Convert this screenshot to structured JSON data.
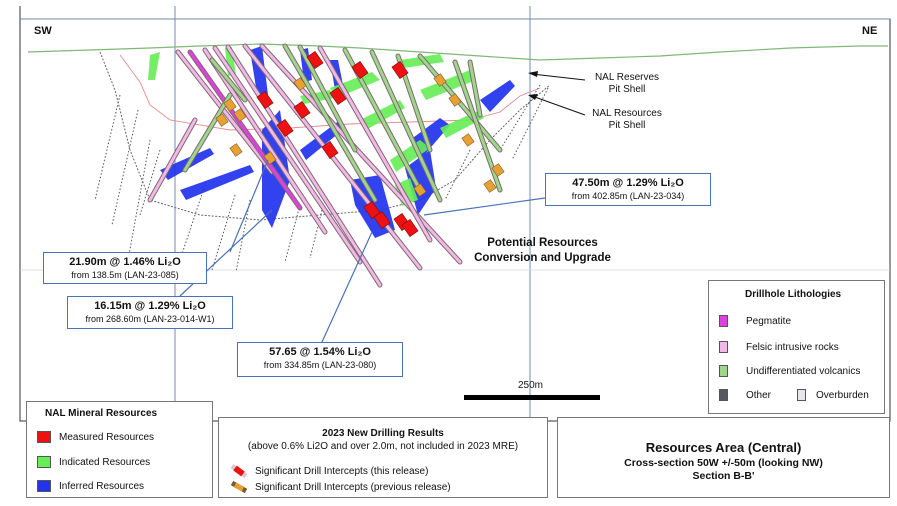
{
  "section": {
    "left_direction": "SW",
    "right_direction": "NE",
    "pit_labels": [
      {
        "line1": "NAL Reserves",
        "line2": "Pit Shell"
      },
      {
        "line1": "NAL Resources",
        "line2": "Pit Shell"
      }
    ],
    "potential": {
      "line1": "Potential Resources",
      "line2": "Conversion and Upgrade"
    },
    "scale_label": "250m"
  },
  "callouts": [
    {
      "main": "47.50m @ 1.29% Li₂O",
      "sub": "from 402.85m  (LAN-23-034)"
    },
    {
      "main": "21.90m @ 1.46% Li₂O",
      "sub": "from 138.5m  (LAN-23-085)"
    },
    {
      "main": "16.15m @ 1.29% Li₂O",
      "sub": "from 268.60m  (LAN-23-014-W1)"
    },
    {
      "main": "57.65 @ 1.54% Li₂O",
      "sub": "from 334.85m  (LAN-23-080)"
    }
  ],
  "lithology_legend": {
    "title": "Drillhole Lithologies",
    "items": [
      {
        "label": "Pegmatite",
        "color": "#e040e0"
      },
      {
        "label": "Felsic intrusive rocks",
        "color": "#f2b8e6"
      },
      {
        "label": "Undifferentiated volcanics",
        "color": "#9fd68a"
      }
    ],
    "other_label": "Other",
    "other_color": "#55585e",
    "overburden_label": "Overburden",
    "overburden_color": "#e6e6ec"
  },
  "resources_legend": {
    "title": "NAL Mineral Resources",
    "items": [
      {
        "label": "Measured Resources",
        "color": "#ee1111"
      },
      {
        "label": "Indicated Resources",
        "color": "#66ee55"
      },
      {
        "label": "Inferred Resources",
        "color": "#2233ee"
      }
    ]
  },
  "drilling_legend": {
    "title": "2023 New Drilling Results",
    "subtitle": "(above 0.6% Li2O and over 2.0m, not included in 2023 MRE)",
    "items": [
      {
        "label": "Significant Drill Intercepts (this release)",
        "color": "#ee1111"
      },
      {
        "label": "Significant Drill Intercepts (previous release)",
        "color": "#e8a030"
      }
    ]
  },
  "title_block": {
    "title": "Resources Area (Central)",
    "line2": "Cross-section 50W +/-50m (looking NW)",
    "line3": "Section B-B'"
  }
}
